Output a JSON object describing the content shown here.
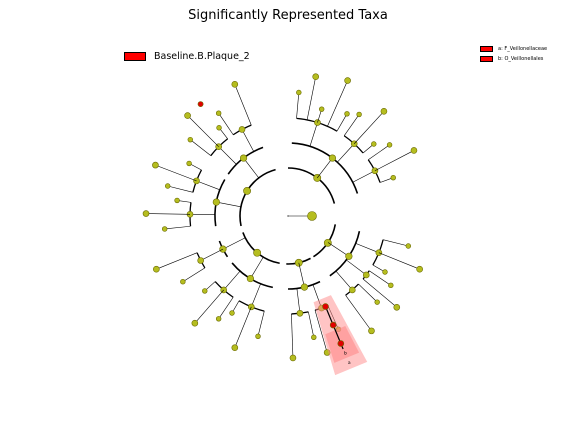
{
  "title": "Significantly Represented Taxa",
  "legend": {
    "group_label": "Baseline.B.Plaque_2",
    "group_color": "#ff0000",
    "entries": [
      {
        "key": "a",
        "label": "a: F_Veillonellaceae"
      },
      {
        "key": "b",
        "label": "b: O_Veillonellales"
      }
    ]
  },
  "highlight_labels": [
    "b",
    "a"
  ],
  "colors": {
    "node_fill": "#b5bd1f",
    "node_stroke": "#6b6b00",
    "highlight_node": "#e00000",
    "highlight_shade": "#ff8a8a"
  }
}
